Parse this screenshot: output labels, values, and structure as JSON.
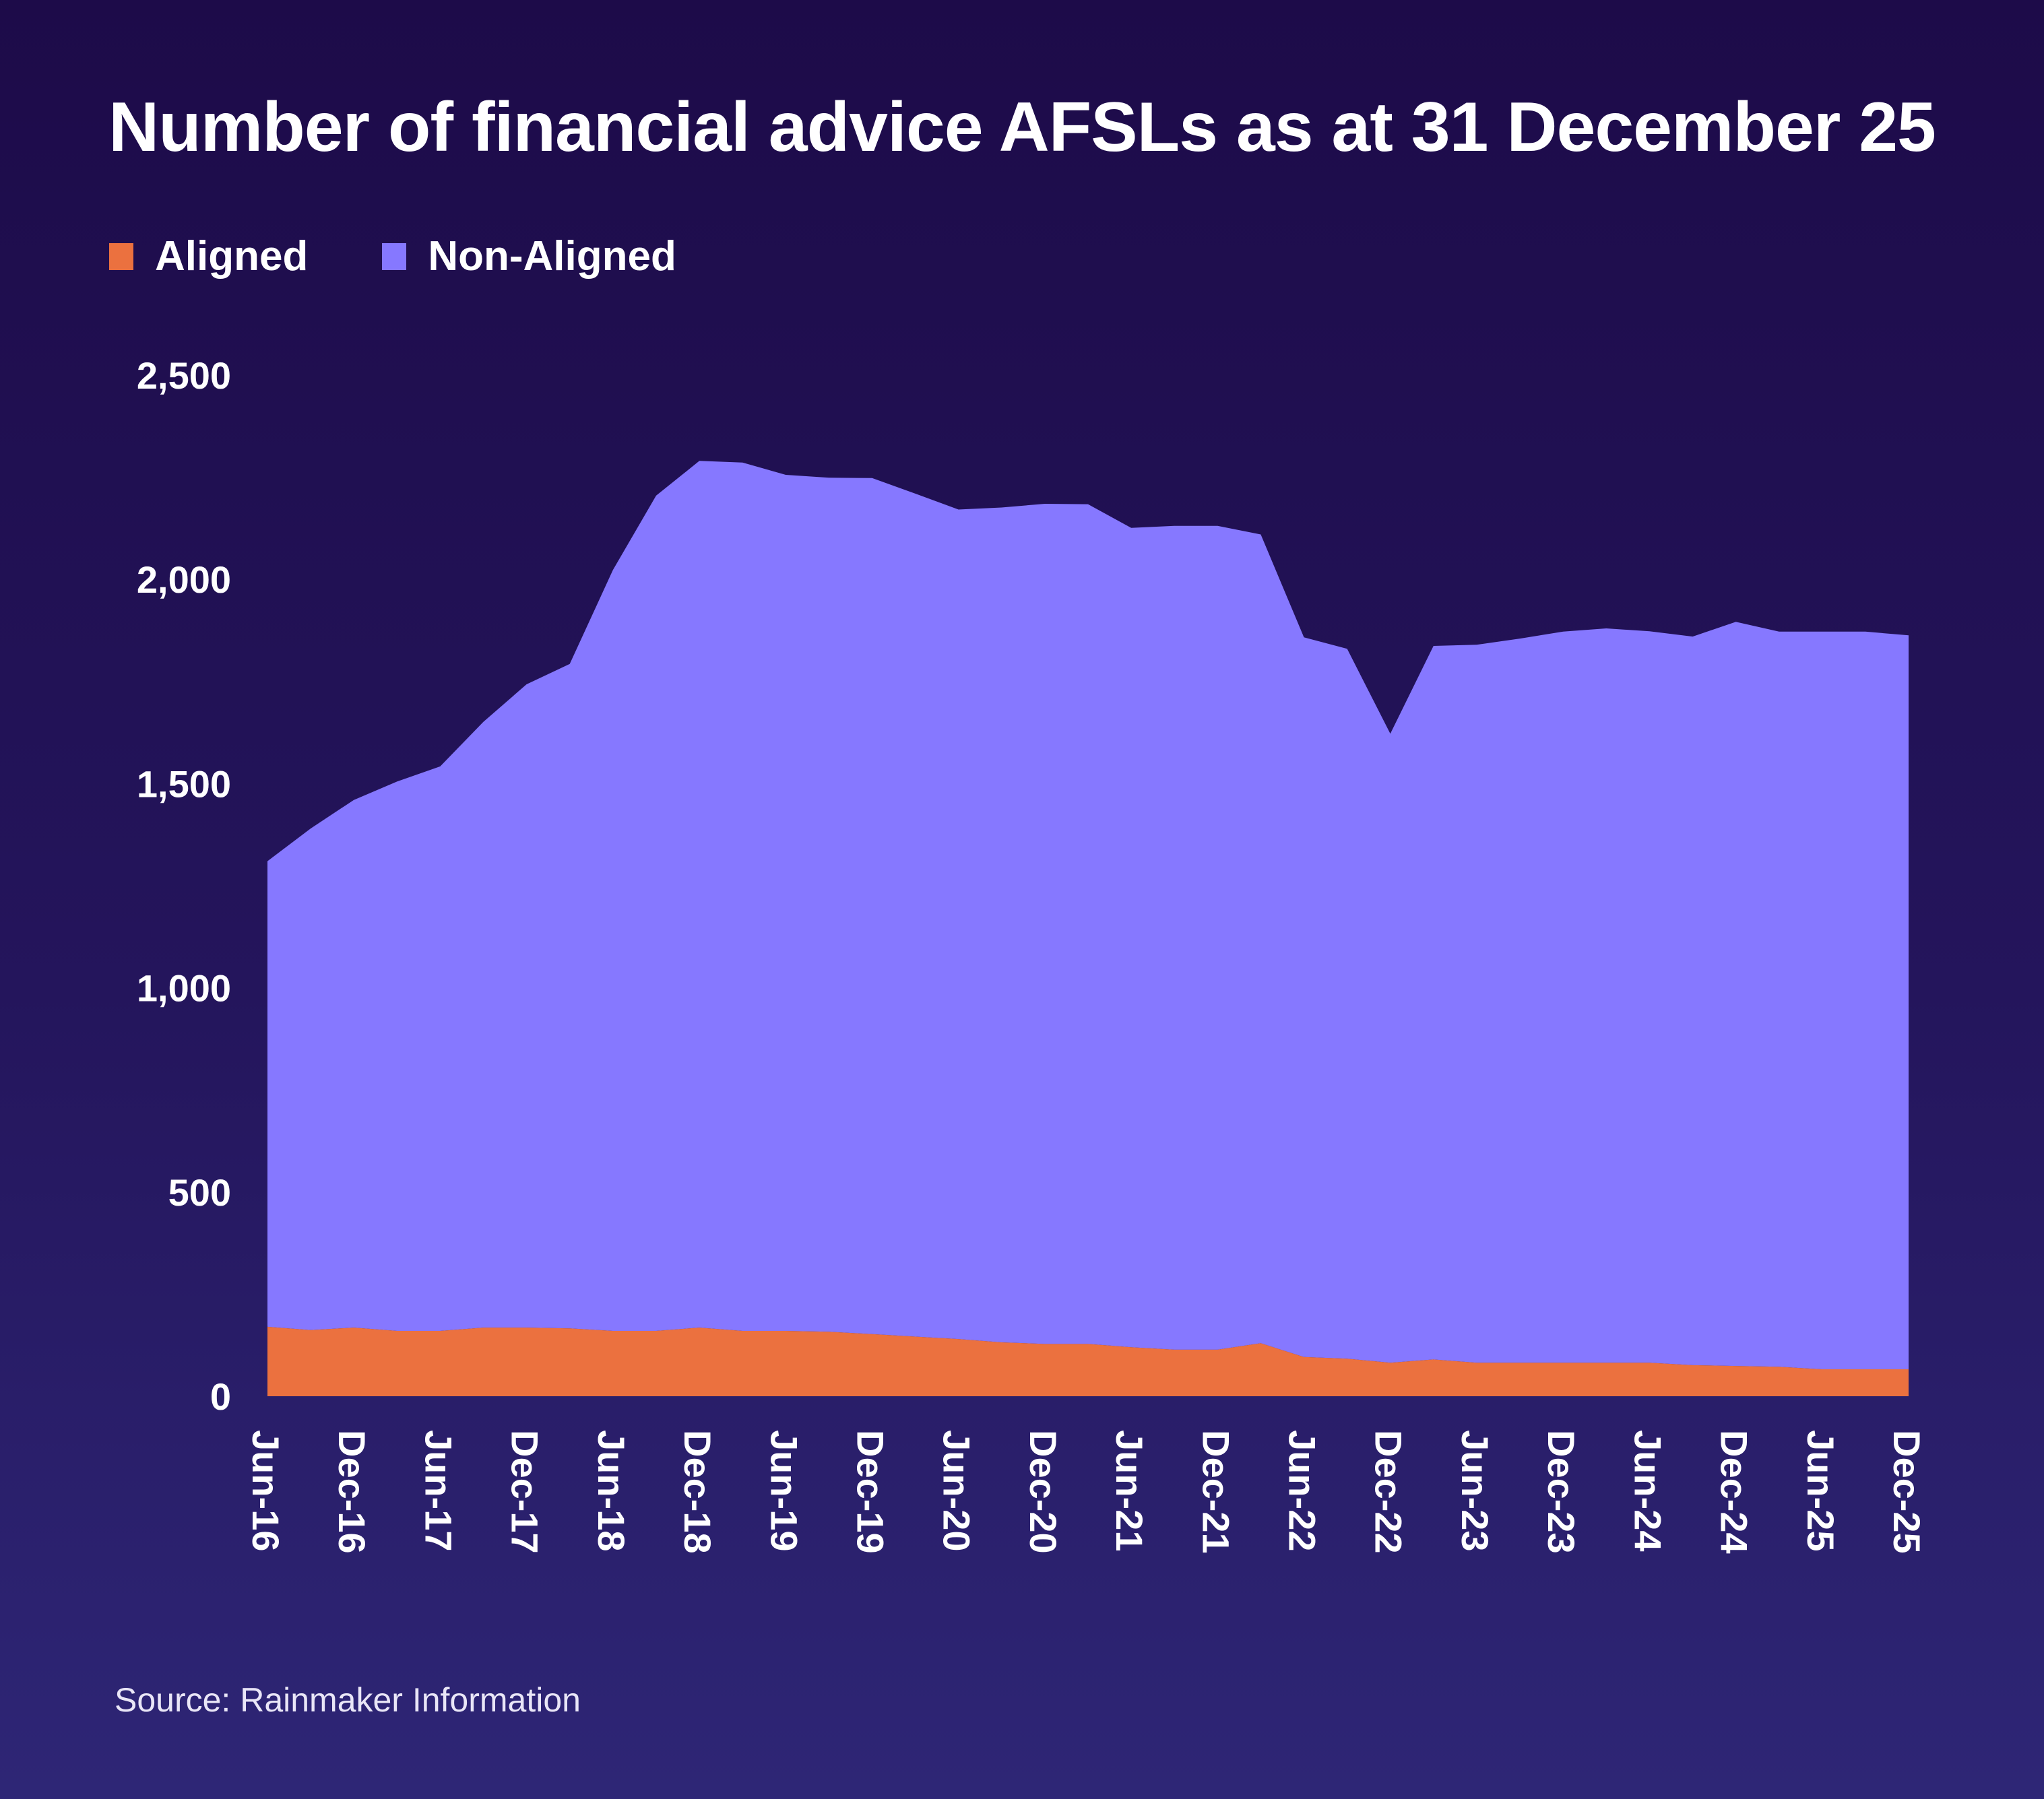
{
  "chart_data": {
    "type": "area",
    "title": "Number of financial advice AFSLs as at 31 December 25",
    "xlabel": "",
    "ylabel": "",
    "ylim": [
      0,
      2500
    ],
    "yticks": [
      "0",
      "500",
      "1,000",
      "1,500",
      "2,000",
      "2,500"
    ],
    "ytick_values": [
      0,
      500,
      1000,
      1500,
      2000,
      2500
    ],
    "stacked": true,
    "grid": false,
    "legend_position": "top-left",
    "x": [
      "Jun-16",
      "Sep-16",
      "Dec-16",
      "Mar-17",
      "Jun-17",
      "Sep-17",
      "Dec-17",
      "Mar-18",
      "Jun-18",
      "Sep-18",
      "Dec-18",
      "Mar-19",
      "Jun-19",
      "Sep-19",
      "Dec-19",
      "Mar-20",
      "Jun-20",
      "Sep-20",
      "Dec-20",
      "Mar-21",
      "Jun-21",
      "Sep-21",
      "Dec-21",
      "Mar-22",
      "Jun-22",
      "Sep-22",
      "Dec-22",
      "Mar-23",
      "Jun-23",
      "Sep-23",
      "Dec-23",
      "Mar-24",
      "Jun-24",
      "Sep-24",
      "Dec-24",
      "Mar-25",
      "Jun-25",
      "Sep-25",
      "Dec-25"
    ],
    "xtick_labels": [
      "Jun-16",
      "Dec-16",
      "Jun-17",
      "Dec-17",
      "Jun-18",
      "Dec-18",
      "Jun-19",
      "Dec-19",
      "Jun-20",
      "Dec-20",
      "Jun-21",
      "Dec-21",
      "Jun-22",
      "Dec-22",
      "Jun-23",
      "Dec-23",
      "Jun-24",
      "Dec-24",
      "Jun-25",
      "Dec-25"
    ],
    "series": [
      {
        "name": "Aligned",
        "color": "#eb713f",
        "values": [
          170,
          162,
          168,
          160,
          160,
          168,
          168,
          166,
          160,
          160,
          168,
          160,
          160,
          158,
          152,
          146,
          140,
          132,
          128,
          128,
          120,
          114,
          114,
          130,
          96,
          92,
          82,
          90,
          82,
          82,
          82,
          82,
          82,
          76,
          74,
          72,
          66,
          66,
          66
        ]
      },
      {
        "name": "Non-Aligned",
        "color": "#8678ff",
        "values": [
          1140,
          1228,
          1292,
          1345,
          1382,
          1483,
          1575,
          1627,
          1863,
          2045,
          2122,
          2126,
          2096,
          2091,
          2096,
          2064,
          2031,
          2044,
          2057,
          2056,
          2006,
          2017,
          2017,
          1980,
          1762,
          1738,
          1540,
          1747,
          1758,
          1773,
          1790,
          1798,
          1791,
          1784,
          1822,
          1800,
          1806,
          1806,
          1797
        ]
      }
    ]
  },
  "legend": {
    "items": [
      {
        "label": "Aligned",
        "color": "#eb713f"
      },
      {
        "label": "Non-Aligned",
        "color": "#8678ff"
      }
    ]
  },
  "source": "Source: Rainmaker Information"
}
